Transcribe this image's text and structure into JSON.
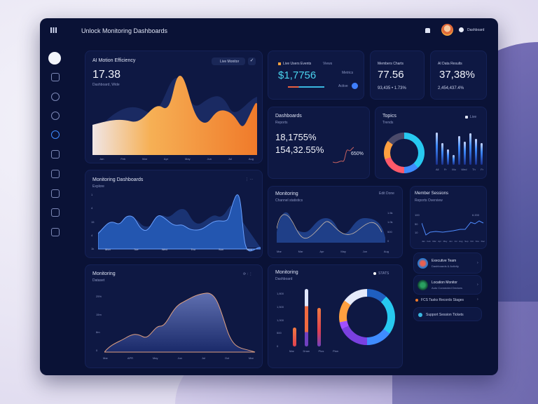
{
  "header": {
    "title": "Unlock Monitoring Dashboards",
    "user_label": "Dashboard"
  },
  "cards": {
    "efficiency": {
      "title": "AI Motion Efficiency",
      "value": "17.38",
      "sub": "Dashboard, Wide",
      "button": "Live Monitor",
      "x_labels": [
        "Jan",
        "Feb",
        "Mar",
        "Apr",
        "May",
        "Jun",
        "Jul",
        "Aug"
      ]
    },
    "revenue": {
      "label": "Live Users Events",
      "tag": "Views",
      "value": "$1,7756",
      "side": "Metrics",
      "toggle_label": "Active"
    },
    "members": {
      "title": "Members Charts",
      "value": "77.56",
      "sub": "93,435 • 1.73%"
    },
    "rate": {
      "title": "AI Data Results",
      "value": "37,38%",
      "sub": "2,454,437.4%"
    },
    "dashboards": {
      "title": "Dashboards",
      "sub": "Reports",
      "value1": "18,1755%",
      "value2": "154,32.55%",
      "spark_label": "650%"
    },
    "topics": {
      "title": "Topics",
      "sub": "Trends",
      "legend": "Live",
      "x_labels": [
        "All",
        "Fr",
        "Mo",
        "Wed",
        "Th",
        "Fr"
      ]
    },
    "monitoring_dash": {
      "title": "Monitoring Dashboards",
      "sub": "Explore",
      "menu": "⋮ ⋯",
      "x_labels": [
        "Mon",
        "Tue",
        "Wed",
        "Thu",
        "Sun",
        "Mon"
      ],
      "y_labels": [
        "1",
        "4",
        "15",
        "4",
        "1k"
      ]
    },
    "monitoring_area": {
      "title": "Monitoring",
      "sub": "Channel statistics",
      "controls": "Edit Done",
      "x_labels": [
        "Mar",
        "Mar",
        "Apr",
        "May",
        "Jun",
        "Aug"
      ],
      "y_labels": [
        "1.5k",
        "1.0k",
        "500",
        "0"
      ]
    },
    "member_lines": {
      "title": "Member Sessions",
      "sub": "Reports Overview",
      "y_labels": [
        "100",
        "50",
        "10"
      ],
      "corner": "6.200",
      "x_labels": [
        "Jan",
        "Feb",
        "Mar",
        "Apr",
        "May",
        "Jun",
        "Jul",
        "Aug",
        "Sep",
        "Oct",
        "Nov",
        "Dec"
      ]
    },
    "mountain": {
      "title": "Monitoring",
      "sub": "Dataset",
      "controls": "⟳ : ⋮",
      "y_labels": [
        "25%",
        "15m",
        "8m",
        "0"
      ],
      "x_labels": [
        "Mar",
        "APR",
        "May",
        "Jun",
        "Jul",
        "Oct",
        "Mar"
      ]
    },
    "bars_donut": {
      "title": "Monitoring",
      "sub": "Dashboard",
      "legend": "STATS",
      "y_labels": [
        "1,800",
        "1,500",
        "1,000",
        "500",
        "0"
      ],
      "x_labels": [
        "Mar",
        "Draw",
        "Plus",
        "Plan"
      ]
    }
  },
  "list": [
    {
      "title": "Executive Team",
      "sub": "Dashboards & Activity"
    },
    {
      "title": "Location Monitor",
      "sub": "Auto Connected Devices"
    },
    {
      "title": "FCS Tasks Records Stages",
      "sub": ""
    },
    {
      "title": "Support Session Tickets",
      "sub": ""
    }
  ]
}
